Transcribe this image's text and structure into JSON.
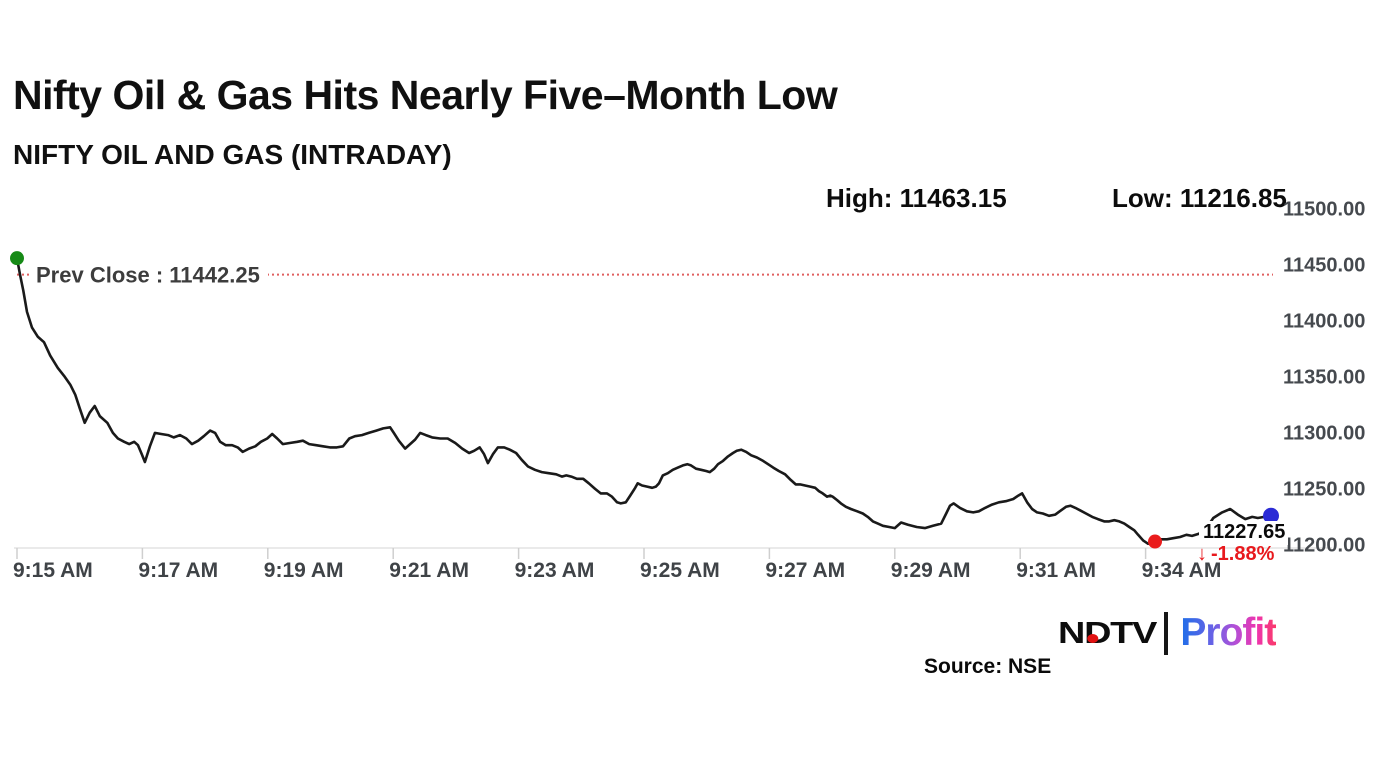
{
  "header": {
    "title": "Nifty Oil & Gas Hits Nearly Five–Month Low",
    "subtitle": "NIFTY OIL AND GAS (INTRADAY)",
    "high_label": "High: 11463.15",
    "low_label": "Low: 11216.85"
  },
  "chart_data": {
    "type": "line",
    "title": "NIFTY OIL AND GAS (INTRADAY)",
    "high": 11463.15,
    "low": 11216.85,
    "prev_close": {
      "label": "Prev Close : 11442.25",
      "value": 11442.25
    },
    "last": {
      "price_label": "11227.65",
      "arrow": "↓",
      "change_label": "-1.88%"
    },
    "x_unit": "minutes after 9:15 AM",
    "xlim": [
      0,
      20
    ],
    "ylim": [
      11200,
      11500
    ],
    "x_ticks": [
      {
        "t": 0,
        "label": "9:15 AM"
      },
      {
        "t": 2,
        "label": "9:17 AM"
      },
      {
        "t": 4,
        "label": "9:19 AM"
      },
      {
        "t": 6,
        "label": "9:21 AM"
      },
      {
        "t": 8,
        "label": "9:23 AM"
      },
      {
        "t": 10,
        "label": "9:25 AM"
      },
      {
        "t": 12,
        "label": "9:27 AM"
      },
      {
        "t": 14,
        "label": "9:29 AM"
      },
      {
        "t": 16,
        "label": "9:31 AM"
      },
      {
        "t": 18,
        "label": "9:34 AM"
      }
    ],
    "y_ticks": [
      {
        "v": 11200,
        "label": "11200.00"
      },
      {
        "v": 11250,
        "label": "11250.00"
      },
      {
        "v": 11300,
        "label": "11300.00"
      },
      {
        "v": 11350,
        "label": "11350.00"
      },
      {
        "v": 11400,
        "label": "11400.00"
      },
      {
        "v": 11450,
        "label": "11450.00"
      },
      {
        "v": 11500,
        "label": "11500.00"
      }
    ],
    "colors": {
      "line": "#1a1a1a",
      "prev_close_line": "#e06060",
      "grid": "#e3e3e3",
      "tick": "#cfcfcf",
      "change_negative": "#e8191d"
    },
    "markers": [
      {
        "name": "open-marker",
        "t": 0,
        "v": 11457,
        "r": 7,
        "color": "#168a16"
      },
      {
        "name": "low-marker",
        "t": 18.15,
        "v": 11204,
        "r": 7,
        "color": "#ea1c1c"
      },
      {
        "name": "last-marker",
        "t": 20,
        "v": 11227,
        "r": 8,
        "color": "#2b2bd5"
      }
    ],
    "series": [
      {
        "name": "NIFTY OIL AND GAS",
        "points": [
          [
            0,
            11457
          ],
          [
            0.05,
            11442
          ],
          [
            0.1,
            11428
          ],
          [
            0.16,
            11409
          ],
          [
            0.24,
            11395
          ],
          [
            0.33,
            11387
          ],
          [
            0.43,
            11382
          ],
          [
            0.53,
            11370
          ],
          [
            0.65,
            11359
          ],
          [
            0.75,
            11352
          ],
          [
            0.85,
            11344
          ],
          [
            0.93,
            11335
          ],
          [
            1.0,
            11323
          ],
          [
            1.08,
            11310
          ],
          [
            1.16,
            11319
          ],
          [
            1.24,
            11325
          ],
          [
            1.32,
            11316
          ],
          [
            1.44,
            11310
          ],
          [
            1.53,
            11301
          ],
          [
            1.61,
            11296
          ],
          [
            1.71,
            11293
          ],
          [
            1.79,
            11291
          ],
          [
            1.87,
            11293
          ],
          [
            1.93,
            11290
          ],
          [
            1.99,
            11282
          ],
          [
            2.04,
            11275
          ],
          [
            2.12,
            11289
          ],
          [
            2.2,
            11301
          ],
          [
            2.3,
            11300
          ],
          [
            2.41,
            11299
          ],
          [
            2.5,
            11297
          ],
          [
            2.6,
            11299
          ],
          [
            2.7,
            11296
          ],
          [
            2.79,
            11291
          ],
          [
            2.89,
            11294
          ],
          [
            2.98,
            11298
          ],
          [
            3.08,
            11303
          ],
          [
            3.16,
            11301
          ],
          [
            3.24,
            11293
          ],
          [
            3.33,
            11290
          ],
          [
            3.43,
            11290
          ],
          [
            3.52,
            11288
          ],
          [
            3.6,
            11284
          ],
          [
            3.7,
            11287
          ],
          [
            3.8,
            11289
          ],
          [
            3.89,
            11293
          ],
          [
            3.99,
            11296
          ],
          [
            4.07,
            11300
          ],
          [
            4.15,
            11296
          ],
          [
            4.24,
            11291
          ],
          [
            4.35,
            11292
          ],
          [
            4.47,
            11293
          ],
          [
            4.56,
            11294
          ],
          [
            4.66,
            11291
          ],
          [
            4.77,
            11290
          ],
          [
            4.88,
            11289
          ],
          [
            4.99,
            11288
          ],
          [
            5.1,
            11288
          ],
          [
            5.2,
            11289
          ],
          [
            5.3,
            11296
          ],
          [
            5.39,
            11298
          ],
          [
            5.5,
            11299
          ],
          [
            5.61,
            11301
          ],
          [
            5.73,
            11303
          ],
          [
            5.84,
            11305
          ],
          [
            5.95,
            11306
          ],
          [
            6.01,
            11301
          ],
          [
            6.09,
            11294
          ],
          [
            6.19,
            11287
          ],
          [
            6.27,
            11291
          ],
          [
            6.35,
            11295
          ],
          [
            6.43,
            11301
          ],
          [
            6.52,
            11299
          ],
          [
            6.62,
            11297
          ],
          [
            6.75,
            11296
          ],
          [
            6.87,
            11296
          ],
          [
            6.99,
            11292
          ],
          [
            7.1,
            11287
          ],
          [
            7.21,
            11283
          ],
          [
            7.29,
            11285
          ],
          [
            7.38,
            11288
          ],
          [
            7.45,
            11282
          ],
          [
            7.51,
            11274
          ],
          [
            7.59,
            11282
          ],
          [
            7.67,
            11288
          ],
          [
            7.77,
            11288
          ],
          [
            7.86,
            11286
          ],
          [
            7.96,
            11283
          ],
          [
            8.05,
            11277
          ],
          [
            8.15,
            11271
          ],
          [
            8.26,
            11268
          ],
          [
            8.37,
            11266
          ],
          [
            8.48,
            11265
          ],
          [
            8.6,
            11264
          ],
          [
            8.69,
            11262
          ],
          [
            8.76,
            11263
          ],
          [
            8.84,
            11262
          ],
          [
            8.93,
            11260
          ],
          [
            9.03,
            11260
          ],
          [
            9.12,
            11256
          ],
          [
            9.22,
            11251
          ],
          [
            9.31,
            11247
          ],
          [
            9.41,
            11247
          ],
          [
            9.49,
            11244
          ],
          [
            9.57,
            11239
          ],
          [
            9.63,
            11238
          ],
          [
            9.71,
            11239
          ],
          [
            9.78,
            11245
          ],
          [
            9.86,
            11252
          ],
          [
            9.9,
            11256
          ],
          [
            9.97,
            11254
          ],
          [
            10.05,
            11253
          ],
          [
            10.13,
            11252
          ],
          [
            10.19,
            11253
          ],
          [
            10.24,
            11256
          ],
          [
            10.3,
            11263
          ],
          [
            10.38,
            11265
          ],
          [
            10.46,
            11268
          ],
          [
            10.54,
            11270
          ],
          [
            10.62,
            11272
          ],
          [
            10.69,
            11273
          ],
          [
            10.75,
            11272
          ],
          [
            10.83,
            11269
          ],
          [
            10.91,
            11268
          ],
          [
            10.99,
            11267
          ],
          [
            11.05,
            11266
          ],
          [
            11.12,
            11269
          ],
          [
            11.18,
            11273
          ],
          [
            11.26,
            11276
          ],
          [
            11.34,
            11280
          ],
          [
            11.42,
            11283
          ],
          [
            11.48,
            11285
          ],
          [
            11.55,
            11286
          ],
          [
            11.63,
            11284
          ],
          [
            11.71,
            11281
          ],
          [
            11.8,
            11279
          ],
          [
            11.9,
            11276
          ],
          [
            11.98,
            11273
          ],
          [
            12.06,
            11270
          ],
          [
            12.15,
            11267
          ],
          [
            12.25,
            11264
          ],
          [
            12.34,
            11259
          ],
          [
            12.42,
            11255
          ],
          [
            12.49,
            11255
          ],
          [
            12.57,
            11254
          ],
          [
            12.65,
            11253
          ],
          [
            12.73,
            11252
          ],
          [
            12.79,
            11249
          ],
          [
            12.85,
            11247
          ],
          [
            12.92,
            11244
          ],
          [
            12.97,
            11245
          ],
          [
            13.01,
            11244
          ],
          [
            13.08,
            11241
          ],
          [
            13.14,
            11238
          ],
          [
            13.22,
            11235
          ],
          [
            13.3,
            11233
          ],
          [
            13.4,
            11231
          ],
          [
            13.49,
            11229
          ],
          [
            13.57,
            11226
          ],
          [
            13.65,
            11222
          ],
          [
            13.73,
            11220
          ],
          [
            13.81,
            11218
          ],
          [
            13.91,
            11217
          ],
          [
            14.0,
            11216
          ],
          [
            14.1,
            11221
          ],
          [
            14.21,
            11219
          ],
          [
            14.35,
            11217
          ],
          [
            14.48,
            11216
          ],
          [
            14.61,
            11218
          ],
          [
            14.74,
            11220
          ],
          [
            14.82,
            11229
          ],
          [
            14.88,
            11236
          ],
          [
            14.94,
            11238
          ],
          [
            15.04,
            11234
          ],
          [
            15.15,
            11231
          ],
          [
            15.25,
            11230
          ],
          [
            15.34,
            11231
          ],
          [
            15.44,
            11234
          ],
          [
            15.55,
            11237
          ],
          [
            15.66,
            11239
          ],
          [
            15.77,
            11240
          ],
          [
            15.89,
            11242
          ],
          [
            15.97,
            11245
          ],
          [
            16.03,
            11247
          ],
          [
            16.11,
            11239
          ],
          [
            16.19,
            11233
          ],
          [
            16.27,
            11230
          ],
          [
            16.36,
            11229
          ],
          [
            16.46,
            11227
          ],
          [
            16.56,
            11228
          ],
          [
            16.63,
            11231
          ],
          [
            16.73,
            11235
          ],
          [
            16.8,
            11236
          ],
          [
            16.88,
            11234
          ],
          [
            16.95,
            11232
          ],
          [
            17.05,
            11229
          ],
          [
            17.15,
            11226
          ],
          [
            17.24,
            11224
          ],
          [
            17.34,
            11222
          ],
          [
            17.42,
            11222
          ],
          [
            17.5,
            11223
          ],
          [
            17.58,
            11222
          ],
          [
            17.66,
            11220
          ],
          [
            17.74,
            11217
          ],
          [
            17.82,
            11214
          ],
          [
            17.88,
            11210
          ],
          [
            17.96,
            11205
          ],
          [
            18.04,
            11202
          ],
          [
            18.15,
            11204
          ],
          [
            18.25,
            11206
          ],
          [
            18.34,
            11206
          ],
          [
            18.44,
            11207
          ],
          [
            18.55,
            11208
          ],
          [
            18.65,
            11210
          ],
          [
            18.74,
            11209
          ],
          [
            18.85,
            11211
          ],
          [
            18.96,
            11215
          ],
          [
            19.08,
            11225
          ],
          [
            19.22,
            11230
          ],
          [
            19.35,
            11233
          ],
          [
            19.47,
            11228
          ],
          [
            19.59,
            11224
          ],
          [
            19.7,
            11226
          ],
          [
            19.79,
            11225
          ],
          [
            19.89,
            11226
          ],
          [
            20.0,
            11227
          ]
        ]
      }
    ]
  },
  "footer": {
    "source_label": "Source: NSE",
    "logo": {
      "ndtv": "NDTV",
      "separator": "|",
      "profit": "Profit"
    }
  }
}
